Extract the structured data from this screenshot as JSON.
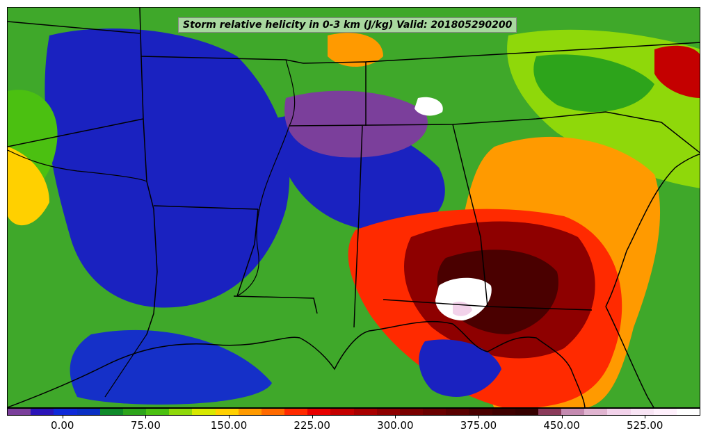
{
  "title": "Storm relative helicity in 0-3 km (J/kg) Valid: 201805290200",
  "colorbar": {
    "min": -50,
    "max": 575,
    "bins": [
      {
        "color": "#7b3f9b"
      },
      {
        "color": "#2b14b8"
      },
      {
        "color": "#0f2ad8"
      },
      {
        "color": "#0a2fc4"
      },
      {
        "color": "#0f8a2a"
      },
      {
        "color": "#2da41b"
      },
      {
        "color": "#4bc011"
      },
      {
        "color": "#8fd80a"
      },
      {
        "color": "#d7e800"
      },
      {
        "color": "#ffd000"
      },
      {
        "color": "#ff9a00"
      },
      {
        "color": "#ff6a00"
      },
      {
        "color": "#ff2a00"
      },
      {
        "color": "#e80000"
      },
      {
        "color": "#c40000"
      },
      {
        "color": "#a80000"
      },
      {
        "color": "#8e0000"
      },
      {
        "color": "#7a0000"
      },
      {
        "color": "#6a0000"
      },
      {
        "color": "#5a0000"
      },
      {
        "color": "#4a0000"
      },
      {
        "color": "#3e0000"
      },
      {
        "color": "#350000"
      },
      {
        "color": "#8a3a5a"
      },
      {
        "color": "#c48ab0"
      },
      {
        "color": "#e0b4d0"
      },
      {
        "color": "#f2d2ea"
      },
      {
        "color": "#f8e4f4"
      },
      {
        "color": "#fff0fc"
      },
      {
        "color": "#ffffff"
      }
    ],
    "ticks": [
      {
        "value": 0,
        "label": "0.00"
      },
      {
        "value": 75,
        "label": "75.00"
      },
      {
        "value": 150,
        "label": "150.00"
      },
      {
        "value": 225,
        "label": "225.00"
      },
      {
        "value": 300,
        "label": "300.00"
      },
      {
        "value": 375,
        "label": "375.00"
      },
      {
        "value": 450,
        "label": "450.00"
      },
      {
        "value": 525,
        "label": "525.00"
      }
    ]
  }
}
